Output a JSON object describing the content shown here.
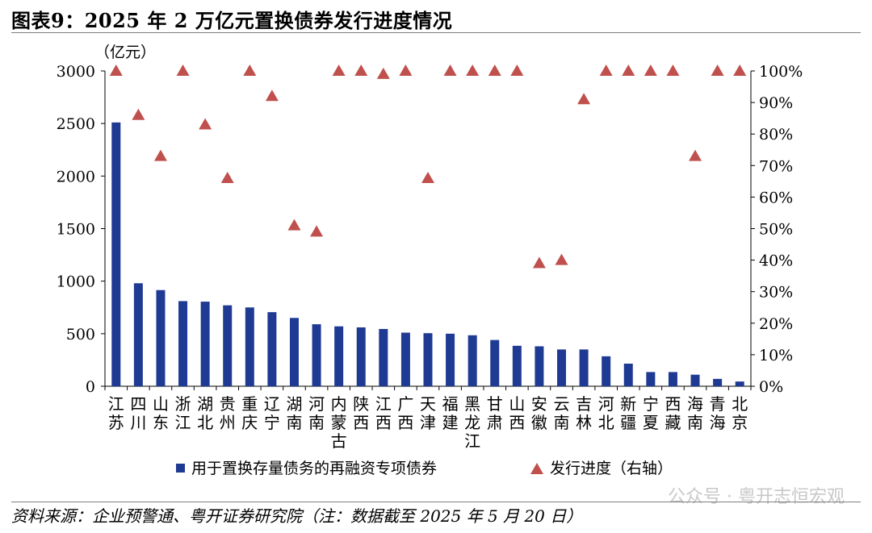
{
  "title": "图表9：2025 年 2 万亿元置换债券发行进度情况",
  "source": "资料来源：企业预警通、粤开证券研究院（注：数据截至 2025 年 5 月 20 日）",
  "watermark": "公众号 · 粤开志恒宏观",
  "chart_data": {
    "type": "bar",
    "ylabel_left": "（亿元）",
    "ylim_left": [
      0,
      3000
    ],
    "yticks_left": [
      "0",
      "500",
      "1000",
      "1500",
      "2000",
      "2500",
      "3000"
    ],
    "ylim_right": [
      0,
      100
    ],
    "yticks_right": [
      "0%",
      "10%",
      "20%",
      "30%",
      "40%",
      "50%",
      "60%",
      "70%",
      "80%",
      "90%",
      "100%"
    ],
    "legend_position": "bottom",
    "colors": {
      "bar": "#1f3a93",
      "marker": "#c0504d"
    },
    "categories": [
      "江苏",
      "四川",
      "山东",
      "浙江",
      "湖北",
      "贵州",
      "重庆",
      "辽宁",
      "湖南",
      "河南",
      "内蒙古",
      "陕西",
      "江西",
      "广西",
      "天津",
      "福建",
      "黑龙江",
      "甘肃",
      "山西",
      "安徽",
      "云南",
      "吉林",
      "河北",
      "新疆",
      "宁夏",
      "西藏",
      "海南",
      "青海",
      "北京"
    ],
    "series": [
      {
        "name": "用于置换存量债务的再融资专项债券",
        "type": "bar",
        "axis": "left",
        "values": [
          2510,
          980,
          915,
          810,
          805,
          770,
          750,
          705,
          650,
          590,
          570,
          560,
          545,
          510,
          505,
          500,
          485,
          440,
          385,
          380,
          350,
          350,
          285,
          215,
          135,
          135,
          110,
          70,
          45
        ]
      },
      {
        "name": "发行进度（右轴）",
        "type": "scatter",
        "marker": "triangle",
        "axis": "right",
        "values": [
          100,
          86,
          73,
          100,
          83,
          66,
          100,
          92,
          51,
          49,
          100,
          100,
          99,
          100,
          66,
          100,
          100,
          100,
          100,
          39,
          40,
          91,
          100,
          100,
          100,
          100,
          73,
          100,
          100
        ]
      }
    ]
  }
}
